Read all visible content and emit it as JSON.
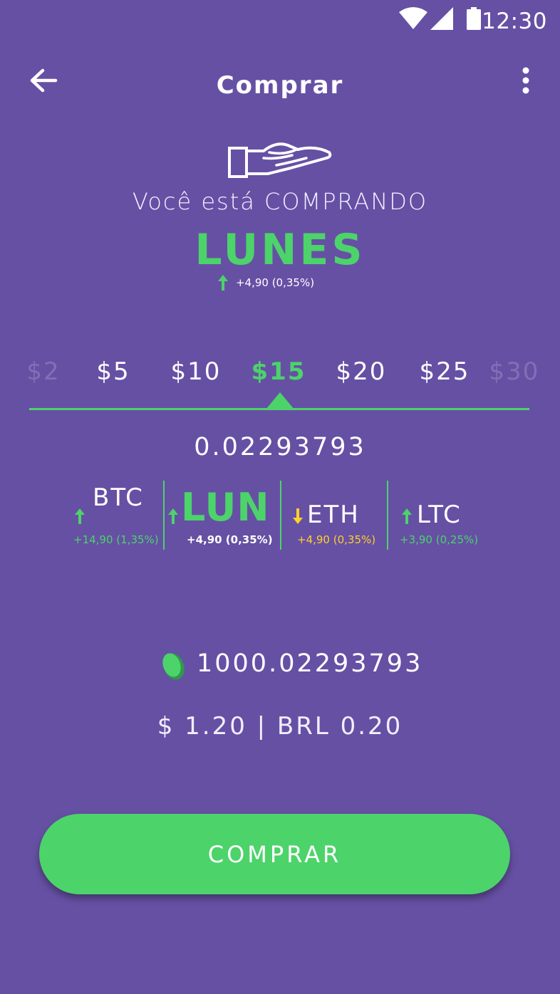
{
  "status_bar": {
    "time": "12:30"
  },
  "header": {
    "title": "Comprar"
  },
  "hero": {
    "subtitle": "Você está COMPRANDO",
    "coin": "LUNES",
    "change": "+4,90 (0,35%)",
    "change_direction": "up"
  },
  "picker": {
    "options": [
      "$2",
      "$5",
      "$10",
      "$15",
      "$20",
      "$25",
      "$30"
    ],
    "selected": "$15"
  },
  "conversion_value": "0.02293793",
  "tickers": [
    {
      "symbol": "BTC",
      "change": "+14,90 (1,35%)",
      "direction": "up"
    },
    {
      "symbol": "LUN",
      "change": "+4,90 (0,35%)",
      "direction": "up",
      "active": true
    },
    {
      "symbol": "ETH",
      "change": "+4,90 (0,35%)",
      "direction": "down"
    },
    {
      "symbol": "LTC",
      "change": "+3,90 (0,25%)",
      "direction": "up"
    }
  ],
  "balance": "1000.02293793",
  "fiat": "$ 1.20 | BRL 0.20",
  "buy_button": "COMPRAR",
  "colors": {
    "background": "#6650A4",
    "accent_green": "#4CD36A",
    "down_yellow": "#FFD02B"
  },
  "icons": [
    "wifi-icon",
    "cell-signal-icon",
    "battery-icon",
    "back-arrow-icon",
    "more-vert-icon",
    "hand-offering-icon",
    "arrow-up-icon",
    "arrow-down-icon",
    "lunes-coin-icon"
  ]
}
